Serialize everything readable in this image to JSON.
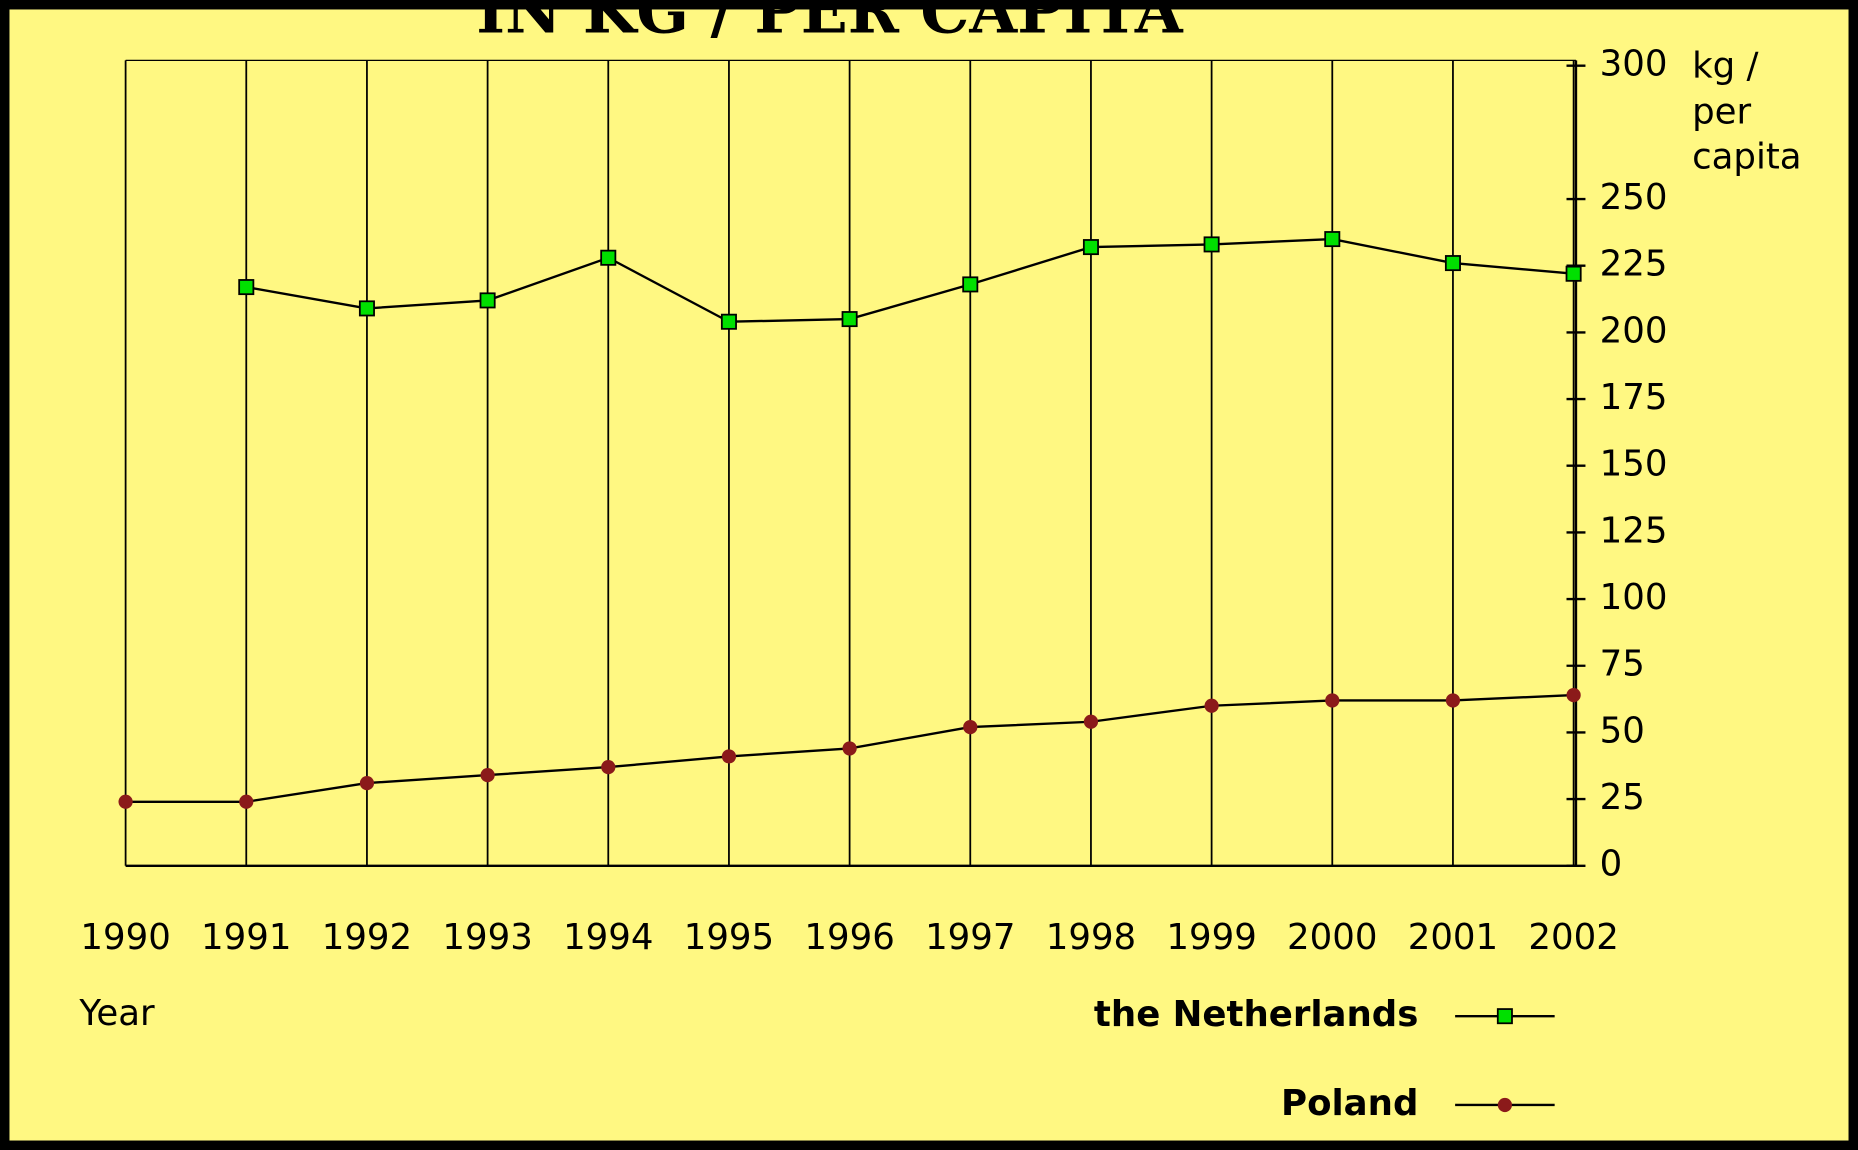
{
  "chart_data": {
    "type": "line",
    "title": "IN KG / PER CAPITA",
    "x_label": "Year",
    "y_label": [
      "kg /",
      "per",
      "capita"
    ],
    "categories": [
      "1990",
      "1991",
      "1992",
      "1993",
      "1994",
      "1995",
      "1996",
      "1997",
      "1998",
      "1999",
      "2000",
      "2001",
      "2002"
    ],
    "series": [
      {
        "name": "the Netherlands",
        "color": "#00e000",
        "marker": "square",
        "values": [
          null,
          217,
          209,
          212,
          228,
          204,
          205,
          218,
          232,
          233,
          235,
          226,
          222
        ]
      },
      {
        "name": "Poland",
        "color": "#8b1a1a",
        "marker": "circle",
        "values": [
          24,
          24,
          31,
          34,
          37,
          41,
          44,
          52,
          54,
          60,
          62,
          62,
          64
        ]
      }
    ],
    "ylim": [
      0,
      302
    ],
    "yticks": [
      0,
      25,
      50,
      75,
      100,
      125,
      150,
      175,
      200,
      225,
      250,
      300
    ],
    "grid": true,
    "legend": "bottom-right"
  }
}
